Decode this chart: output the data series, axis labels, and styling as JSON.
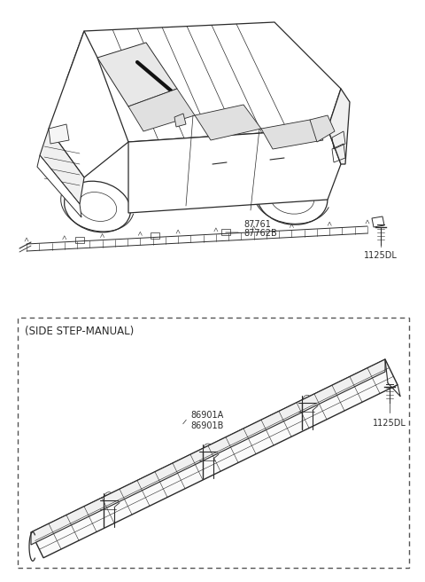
{
  "bg_color": "#ffffff",
  "line_color": "#2a2a2a",
  "fig_width": 4.8,
  "fig_height": 6.56,
  "dpi": 100,
  "upper_part_number_1": "87761",
  "upper_part_number_2": "87762B",
  "upper_bolt_label": "1125DL",
  "lower_section_title": "(SIDE STEP-MANUAL)",
  "lower_part_number_1": "86901A",
  "lower_part_number_2": "86901B",
  "lower_bolt_label": "1125DL"
}
